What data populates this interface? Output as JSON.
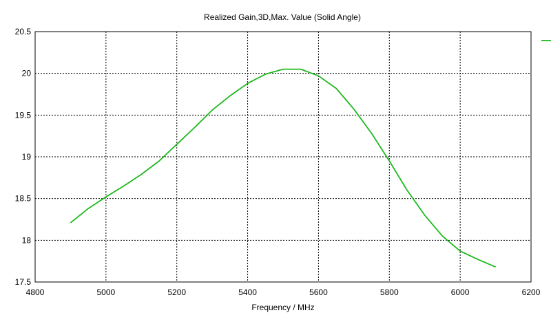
{
  "chart_data": {
    "type": "line",
    "title": "Realized Gain,3D,Max. Value (Solid Angle)",
    "xlabel": "Frequency / MHz",
    "ylabel": "",
    "xlim": [
      4800,
      6200
    ],
    "ylim": [
      17.5,
      20.5
    ],
    "xticks": [
      4800,
      5000,
      5200,
      5400,
      5600,
      5800,
      6000,
      6200
    ],
    "yticks": [
      17.5,
      18,
      18.5,
      19,
      19.5,
      20,
      20.5
    ],
    "xtick_labels": [
      "4800",
      "5000",
      "5200",
      "5400",
      "5600",
      "5800",
      "6000",
      "6200"
    ],
    "ytick_labels": [
      "17.5",
      "18",
      "18.5",
      "19",
      "19.5",
      "20",
      "20.5"
    ],
    "grid": true,
    "legend": "top-right",
    "series": [
      {
        "color": "#1db81d",
        "x": [
          4900,
          4950,
          5000,
          5050,
          5100,
          5150,
          5200,
          5250,
          5300,
          5350,
          5400,
          5450,
          5500,
          5550,
          5600,
          5650,
          5700,
          5750,
          5800,
          5850,
          5900,
          5950,
          6000,
          6050,
          6100
        ],
        "y": [
          18.21,
          18.38,
          18.52,
          18.65,
          18.79,
          18.95,
          19.15,
          19.35,
          19.56,
          19.73,
          19.88,
          19.99,
          20.05,
          20.05,
          19.97,
          19.82,
          19.57,
          19.28,
          18.95,
          18.6,
          18.3,
          18.05,
          17.87,
          17.77,
          17.68
        ]
      }
    ]
  }
}
